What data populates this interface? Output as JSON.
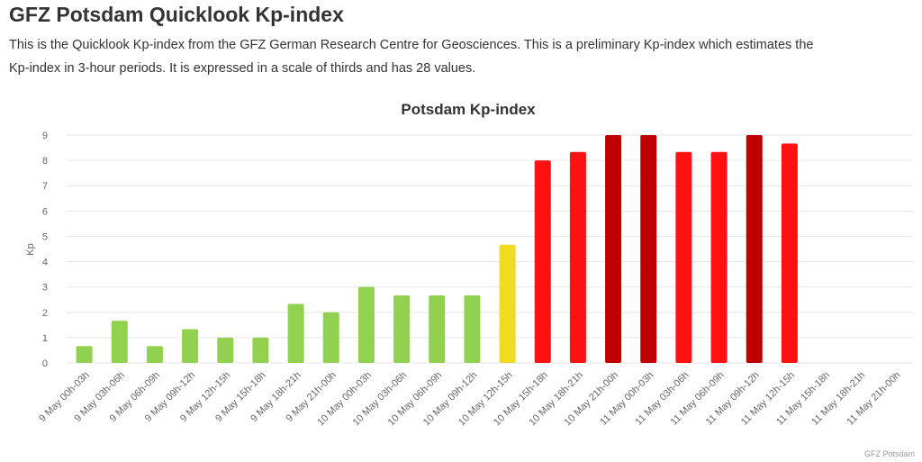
{
  "page": {
    "title": "GFZ Potsdam Quicklook Kp-index",
    "description_line1": "This is the Quicklook Kp-index from the GFZ German Research Centre for Geosciences. This is a preliminary Kp-index which estimates the",
    "description_line2": "Kp-index in 3-hour periods. It is expressed in a scale of thirds and has 28 values."
  },
  "chart_data": {
    "type": "bar",
    "title": "Potsdam Kp-index",
    "xlabel": "",
    "ylabel": "Kp",
    "ylim": [
      0,
      9
    ],
    "yticks": [
      0,
      1,
      2,
      3,
      4,
      5,
      6,
      7,
      8,
      9
    ],
    "grid": true,
    "legend": "none",
    "credits": "GFZ Potsdam",
    "categories": [
      "9 May 00h-03h",
      "9 May 03h-06h",
      "9 May 06h-09h",
      "9 May 09h-12h",
      "9 May 12h-15h",
      "9 May 15h-18h",
      "9 May 18h-21h",
      "9 May 21h-00h",
      "10 May 00h-03h",
      "10 May 03h-06h",
      "10 May 06h-09h",
      "10 May 09h-12h",
      "10 May 12h-15h",
      "10 May 15h-18h",
      "10 May 18h-21h",
      "10 May 21h-00h",
      "11 May 00h-03h",
      "11 May 03h-06h",
      "11 May 06h-09h",
      "11 May 09h-12h",
      "11 May 12h-15h",
      "11 May 15h-18h",
      "11 May 18h-21h",
      "11 May 21h-00h"
    ],
    "values": [
      0.667,
      1.667,
      0.667,
      1.333,
      1.0,
      1.0,
      2.333,
      2.0,
      3.0,
      2.667,
      2.667,
      2.667,
      4.667,
      8.0,
      8.333,
      9.0,
      9.0,
      8.333,
      8.333,
      9.0,
      8.667,
      null,
      null,
      null
    ],
    "colors": {
      "quiet": "#92d050",
      "active": "#f0dc1e",
      "storm": "#ff1111",
      "severe": "#c00000",
      "grid": "#e6e6e6",
      "axis_text": "#666666"
    }
  }
}
